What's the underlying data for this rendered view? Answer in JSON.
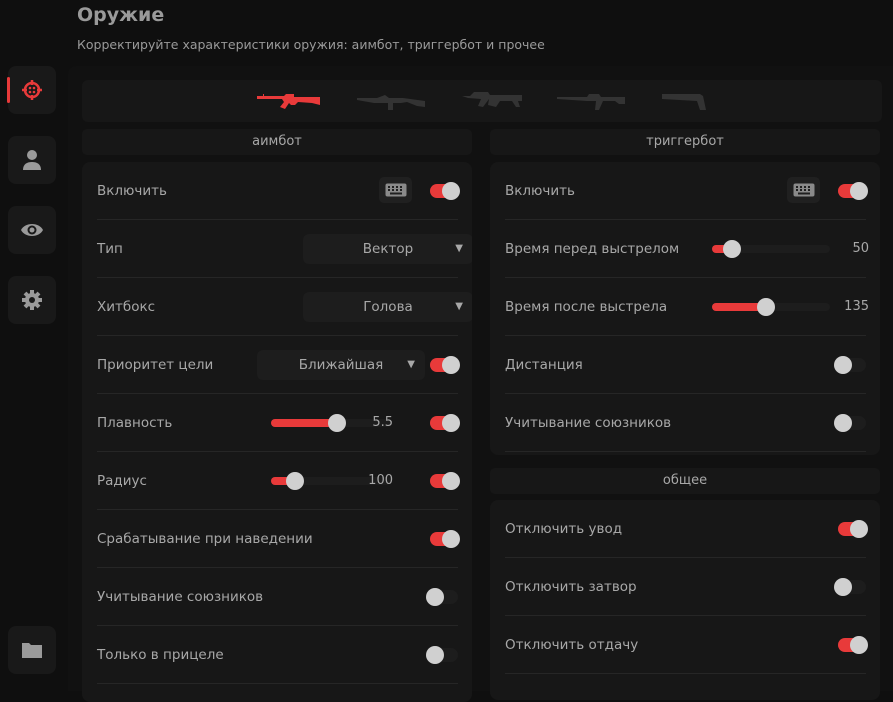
{
  "header": {
    "title": "Оружие",
    "subtitle": "Корректируйте характеристики оружия: аимбот, триггербот и прочее"
  },
  "colors": {
    "accent": "#e83a3a",
    "background": "#0f0f0f",
    "panel": "#171717"
  },
  "sidebar": {
    "items": [
      {
        "icon": "crosshair-icon",
        "active": true
      },
      {
        "icon": "user-icon",
        "active": false
      },
      {
        "icon": "eye-icon",
        "active": false
      },
      {
        "icon": "gear-icon",
        "active": false
      },
      {
        "icon": "folder-icon",
        "active": false
      }
    ]
  },
  "weapons": [
    {
      "icon": "ak47-icon",
      "selected": true
    },
    {
      "icon": "rifle-icon",
      "selected": false
    },
    {
      "icon": "smg-icon",
      "selected": false
    },
    {
      "icon": "sniper-rifle-icon",
      "selected": false
    },
    {
      "icon": "pistol-icon",
      "selected": false
    }
  ],
  "aimbot": {
    "title": "аимбот",
    "rows": [
      {
        "label": "Включить",
        "type": "toggle",
        "keybind": true,
        "on": true
      },
      {
        "label": "Тип",
        "type": "select",
        "value": "Вектор"
      },
      {
        "label": "Хитбокс",
        "type": "select",
        "value": "Голова"
      },
      {
        "label": "Приоритет цели",
        "type": "select",
        "value": "Ближайшая",
        "toggle": true,
        "on": true
      },
      {
        "label": "Плавность",
        "type": "slider",
        "value": "5.5",
        "fill": 0.55,
        "toggle": true,
        "on": true
      },
      {
        "label": "Радиус",
        "type": "slider",
        "value": "100",
        "fill": 0.2,
        "toggle": true,
        "on": true
      },
      {
        "label": "Срабатывание при наведении",
        "type": "toggle",
        "on": true
      },
      {
        "label": "Учитывание союзников",
        "type": "toggle",
        "on": false
      },
      {
        "label": "Только в прицеле",
        "type": "toggle",
        "on": false
      }
    ]
  },
  "triggerbot": {
    "title": "триггербот",
    "rows": [
      {
        "label": "Включить",
        "type": "toggle",
        "keybind": true,
        "on": true
      },
      {
        "label": "Время перед выстрелом",
        "type": "slider",
        "value": "50",
        "fill": 0.17
      },
      {
        "label": "Время после выстрела",
        "type": "slider",
        "value": "135",
        "fill": 0.46
      },
      {
        "label": "Дистанция",
        "type": "toggle",
        "on": false
      },
      {
        "label": "Учитывание союзников",
        "type": "toggle",
        "on": false
      }
    ]
  },
  "general": {
    "title": "общее",
    "rows": [
      {
        "label": "Отключить увод",
        "type": "toggle",
        "on": true
      },
      {
        "label": "Отключить затвор",
        "type": "toggle",
        "on": false
      },
      {
        "label": "Отключить отдачу",
        "type": "toggle",
        "on": true
      }
    ]
  }
}
